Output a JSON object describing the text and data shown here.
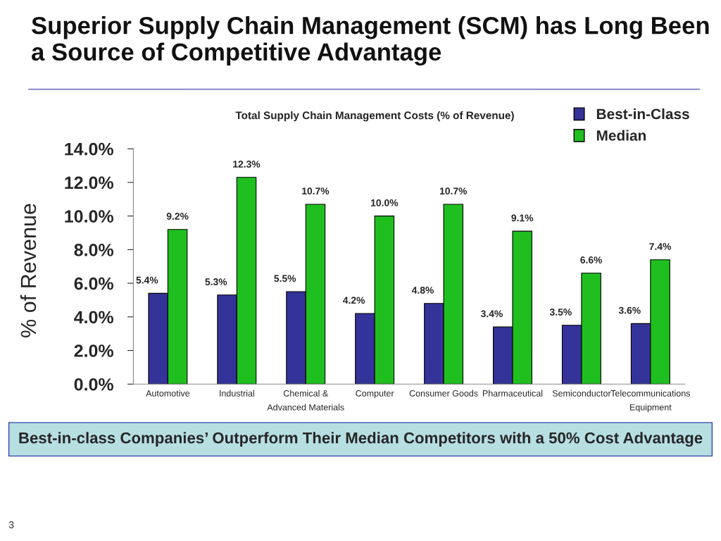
{
  "chart_data": {
    "type": "bar",
    "title": "Superior Supply Chain Management (SCM) has Long Been a Source of Competitive Advantage",
    "subtitle": "Total Supply Chain Management Costs (% of Revenue)",
    "ylabel": "% of Revenue",
    "categories": [
      "Automotive",
      "Industrial",
      "Chemical &\nAdvanced Materials",
      "Computer",
      "Consumer Goods",
      "Pharmaceutical",
      "Semiconductor",
      "Telecommunications\nEquipment"
    ],
    "series": [
      {
        "name": "Best-in-Class",
        "color": "#333399",
        "values": [
          5.4,
          5.3,
          5.5,
          4.2,
          4.8,
          3.4,
          3.5,
          3.6
        ],
        "value_labels": [
          "5.4%",
          "5.3%",
          "5.5%",
          "4.2%",
          "4.8%",
          "3.4%",
          "3.5%",
          "3.6%"
        ]
      },
      {
        "name": "Median",
        "color": "#1fbf1f",
        "values": [
          9.2,
          12.3,
          10.7,
          10.0,
          10.7,
          9.1,
          6.6,
          7.4
        ],
        "value_labels": [
          "9.2%",
          "12.3%",
          "10.7%",
          "10.0%",
          "10.7%",
          "9.1%",
          "6.6%",
          "7.4%"
        ]
      }
    ],
    "ylim": [
      0,
      14
    ],
    "yticks": [
      {
        "value": 0,
        "label": "0.0%"
      },
      {
        "value": 2,
        "label": "2.0%"
      },
      {
        "value": 4,
        "label": "4.0%"
      },
      {
        "value": 6,
        "label": "6.0%"
      },
      {
        "value": 8,
        "label": "8.0%"
      },
      {
        "value": 10,
        "label": "10.0%"
      },
      {
        "value": 12,
        "label": "12.0%"
      },
      {
        "value": 14,
        "label": "14.0%"
      }
    ],
    "grid": false,
    "legend": "top right",
    "annotations": [
      "Best-in-class Companies’ Outperform Their Median Competitors with a 50% Cost Advantage",
      "3"
    ]
  }
}
